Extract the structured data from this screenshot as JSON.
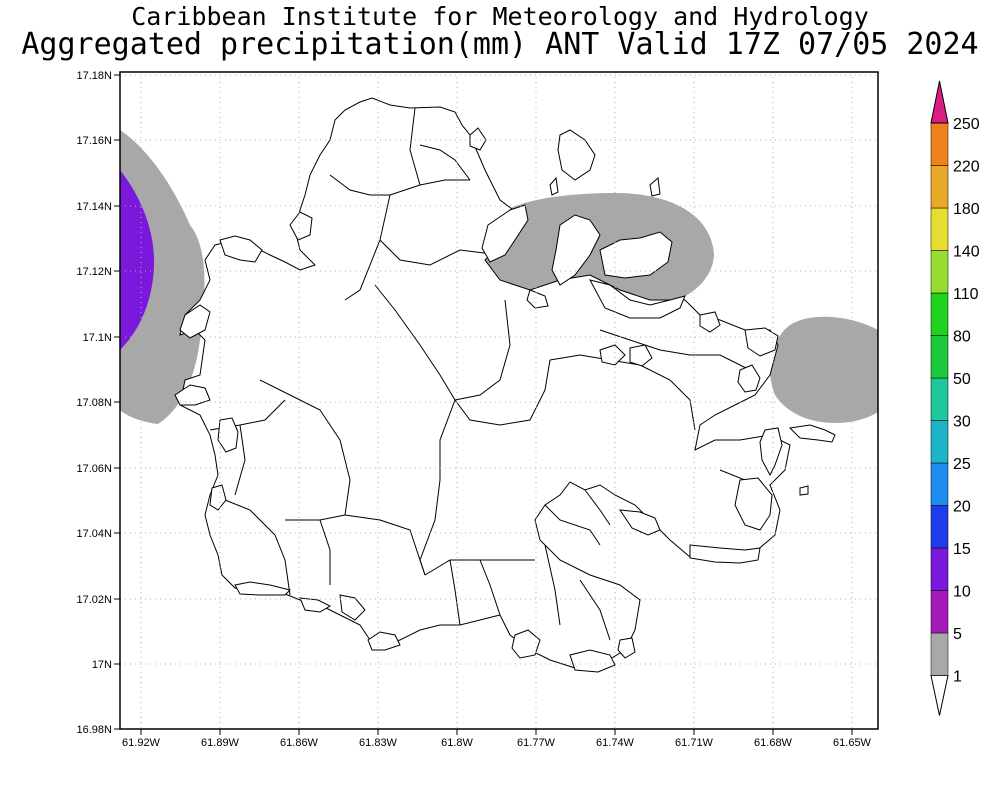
{
  "title": {
    "line1": "Caribbean Institute for Meteorology and Hydrology",
    "line2": "Aggregated precipitation(mm) ANT Valid 17Z 07/05 2024"
  },
  "map": {
    "lon_ticks": [
      "61.92W",
      "61.89W",
      "61.86W",
      "61.83W",
      "61.8W",
      "61.77W",
      "61.74W",
      "61.71W",
      "61.68W",
      "61.65W"
    ],
    "lat_ticks": [
      "17.18N",
      "17.16N",
      "17.14N",
      "17.12N",
      "17.1N",
      "17.08N",
      "17.06N",
      "17.04N",
      "17.02N",
      "17N",
      "16.98N"
    ],
    "grid": true,
    "land_fill": "#ffffff",
    "coast_color": "#000000"
  },
  "colorbar": {
    "levels": [
      "1",
      "5",
      "10",
      "15",
      "20",
      "25",
      "30",
      "50",
      "80",
      "110",
      "140",
      "180",
      "220",
      "250"
    ],
    "colors": [
      "#a8a8a8",
      "#a31ab8",
      "#7a18dc",
      "#1e3ce8",
      "#1e8cf0",
      "#1eb4c8",
      "#1ec89a",
      "#1ec83c",
      "#1ed21e",
      "#96dc32",
      "#e6dc32",
      "#e6aa28",
      "#f0821e",
      "#f03c3c",
      "#dc1e82"
    ],
    "under_color": "#ffffff"
  },
  "precip_areas": [
    {
      "name": "west-edge-area",
      "level": "1",
      "color": "#a8a8a8"
    },
    {
      "name": "west-edge-core",
      "level": "10",
      "color": "#7a18dc"
    },
    {
      "name": "northeast-area",
      "level": "1",
      "color": "#a8a8a8"
    },
    {
      "name": "east-area",
      "level": "1",
      "color": "#a8a8a8"
    }
  ]
}
